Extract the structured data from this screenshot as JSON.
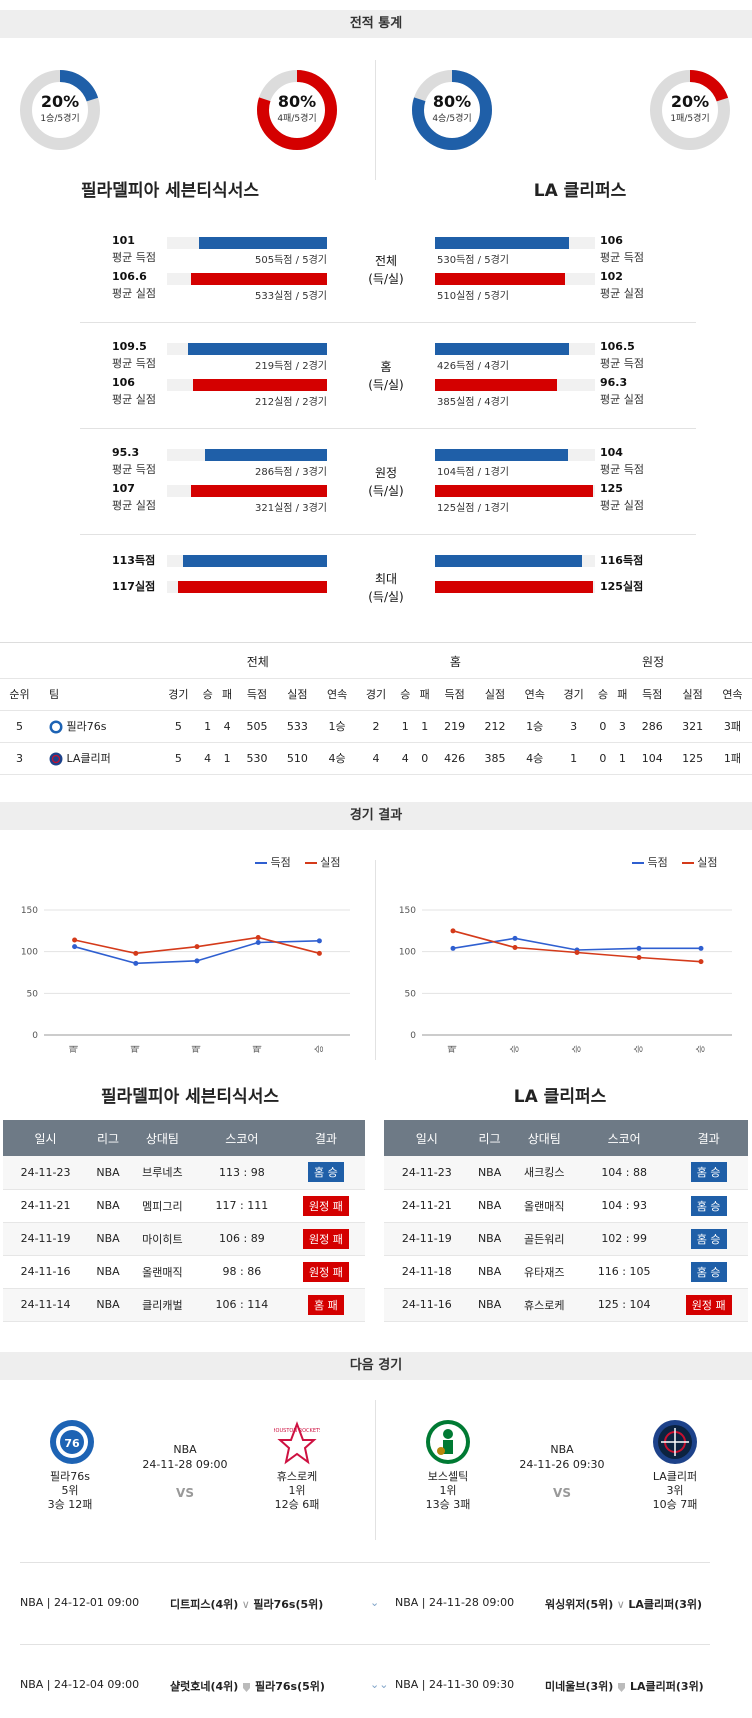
{
  "sections": {
    "stats": "전적 통계",
    "results": "경기 결과",
    "next": "다음 경기"
  },
  "teams": {
    "left": {
      "name": "필라델피아 세븐티식서스",
      "short": "필라76s",
      "rank": "5위",
      "record": "3승 12패"
    },
    "right": {
      "name": "LA 클리퍼스",
      "short": "LA클리퍼",
      "rank": "3위",
      "record": "10승 7패"
    }
  },
  "donuts": [
    {
      "pct": "20%",
      "sub": "1승/5경기",
      "color": "#1f5fa8",
      "fraction": 0.2
    },
    {
      "pct": "80%",
      "sub": "4패/5경기",
      "color": "#d40000",
      "fraction": 0.8
    },
    {
      "pct": "80%",
      "sub": "4승/5경기",
      "color": "#1f5fa8",
      "fraction": 0.8
    },
    {
      "pct": "20%",
      "sub": "1패/5경기",
      "color": "#d40000",
      "fraction": 0.2
    }
  ],
  "stat_groups": [
    {
      "label1": "전체",
      "label2": "(득/실)",
      "left": [
        {
          "num": "101",
          "lbl": "평균 득점",
          "txt": "505득점 / 5경기",
          "frac": 0.8
        },
        {
          "num": "106.6",
          "lbl": "평균 실점",
          "txt": "533실점 / 5경기",
          "frac": 0.85
        }
      ],
      "right": [
        {
          "num": "106",
          "lbl": "평균 득점",
          "txt": "530득점 / 5경기",
          "frac": 0.84
        },
        {
          "num": "102",
          "lbl": "평균 실점",
          "txt": "510실점 / 5경기",
          "frac": 0.81
        }
      ]
    },
    {
      "label1": "홈",
      "label2": "(득/실)",
      "left": [
        {
          "num": "109.5",
          "lbl": "평균 득점",
          "txt": "219득점 / 2경기",
          "frac": 0.87
        },
        {
          "num": "106",
          "lbl": "평균 실점",
          "txt": "212실점 / 2경기",
          "frac": 0.84
        }
      ],
      "right": [
        {
          "num": "106.5",
          "lbl": "평균 득점",
          "txt": "426득점 / 4경기",
          "frac": 0.84
        },
        {
          "num": "96.3",
          "lbl": "평균 실점",
          "txt": "385실점 / 4경기",
          "frac": 0.76
        }
      ]
    },
    {
      "label1": "원정",
      "label2": "(득/실)",
      "left": [
        {
          "num": "95.3",
          "lbl": "평균 득점",
          "txt": "286득점 / 3경기",
          "frac": 0.76
        },
        {
          "num": "107",
          "lbl": "평균 실점",
          "txt": "321실점 / 3경기",
          "frac": 0.85
        }
      ],
      "right": [
        {
          "num": "104",
          "lbl": "평균 득점",
          "txt": "104득점 / 1경기",
          "frac": 0.83
        },
        {
          "num": "125",
          "lbl": "평균 실점",
          "txt": "125실점 / 1경기",
          "frac": 0.99
        }
      ]
    },
    {
      "label1": "최대",
      "label2": "(득/실)",
      "left": [
        {
          "num": "113득점",
          "frac": 0.9
        },
        {
          "num": "117실점",
          "frac": 0.93
        }
      ],
      "right": [
        {
          "num": "116득점",
          "frac": 0.92
        },
        {
          "num": "125실점",
          "frac": 0.99
        }
      ]
    }
  ],
  "standings": {
    "group_headers": [
      "전체",
      "홈",
      "원정"
    ],
    "headers": [
      "순위",
      "팀",
      "경기",
      "승",
      "패",
      "득점",
      "실점",
      "연속",
      "경기",
      "승",
      "패",
      "득점",
      "실점",
      "연속",
      "경기",
      "승",
      "패",
      "득점",
      "실점",
      "연속"
    ],
    "rows": [
      [
        "5",
        "필라76s",
        "5",
        "1",
        "4",
        "505",
        "533",
        "1승",
        "2",
        "1",
        "1",
        "219",
        "212",
        "1승",
        "3",
        "0",
        "3",
        "286",
        "321",
        "3패"
      ],
      [
        "3",
        "LA클리퍼",
        "5",
        "4",
        "1",
        "530",
        "510",
        "4승",
        "4",
        "4",
        "0",
        "426",
        "385",
        "4승",
        "1",
        "0",
        "1",
        "104",
        "125",
        "1패"
      ]
    ]
  },
  "legend": {
    "scored": "득점",
    "conceded": "실점"
  },
  "chart_data": [
    {
      "type": "line",
      "x": [
        "패",
        "패",
        "패",
        "패",
        "승"
      ],
      "ylim": [
        0,
        150
      ],
      "yticks": [
        0,
        50,
        100,
        150
      ],
      "series": [
        {
          "name": "득점",
          "color": "#2f5fd0",
          "values": [
            106,
            86,
            89,
            111,
            113
          ]
        },
        {
          "name": "실점",
          "color": "#d43a1a",
          "values": [
            114,
            98,
            106,
            117,
            98
          ]
        }
      ]
    },
    {
      "type": "line",
      "x": [
        "패",
        "승",
        "승",
        "승",
        "승"
      ],
      "ylim": [
        0,
        150
      ],
      "yticks": [
        0,
        50,
        100,
        150
      ],
      "series": [
        {
          "name": "득점",
          "color": "#2f5fd0",
          "values": [
            104,
            116,
            102,
            104,
            104
          ]
        },
        {
          "name": "실점",
          "color": "#d43a1a",
          "values": [
            125,
            105,
            99,
            93,
            88
          ]
        }
      ]
    }
  ],
  "results_headers": [
    "일시",
    "리그",
    "상대팀",
    "스코어",
    "결과"
  ],
  "results_left": [
    [
      "24-11-23",
      "NBA",
      "브루네츠",
      "113 : 98",
      "홈 승",
      "home"
    ],
    [
      "24-11-21",
      "NBA",
      "멤피그리",
      "117 : 111",
      "원정 패",
      "away"
    ],
    [
      "24-11-19",
      "NBA",
      "마이히트",
      "106 : 89",
      "원정 패",
      "away"
    ],
    [
      "24-11-16",
      "NBA",
      "올랜매직",
      "98 : 86",
      "원정 패",
      "away"
    ],
    [
      "24-11-14",
      "NBA",
      "클리캐벌",
      "106 : 114",
      "홈 패",
      "away"
    ]
  ],
  "results_right": [
    [
      "24-11-23",
      "NBA",
      "새크킹스",
      "104 : 88",
      "홈 승",
      "home"
    ],
    [
      "24-11-21",
      "NBA",
      "올랜매직",
      "104 : 93",
      "홈 승",
      "home"
    ],
    [
      "24-11-19",
      "NBA",
      "골든워리",
      "102 : 99",
      "홈 승",
      "home"
    ],
    [
      "24-11-18",
      "NBA",
      "유타재즈",
      "116 : 105",
      "홈 승",
      "home"
    ],
    [
      "24-11-16",
      "NBA",
      "휴스로케",
      "125 : 104",
      "원정 패",
      "away"
    ]
  ],
  "next_games": [
    {
      "league": "NBA",
      "datetime": "24-11-28 09:00",
      "vs": "VS",
      "home": {
        "name": "필라76s",
        "rank": "5위",
        "record": "3승 12패"
      },
      "away": {
        "name": "휴스로케",
        "rank": "1위",
        "record": "12승 6패"
      }
    },
    {
      "league": "NBA",
      "datetime": "24-11-26 09:30",
      "vs": "VS",
      "home": {
        "name": "보스셀틱",
        "rank": "1위",
        "record": "13승 3패"
      },
      "away": {
        "name": "LA클리퍼",
        "rank": "3위",
        "record": "10승 7패"
      }
    }
  ],
  "schedule": [
    {
      "left": "NBA | 24-12-01 09:00",
      "t1": "디트피스(4위)",
      "t2": "필라76s(5위)",
      "right": "NBA | 24-11-28 09:00",
      "t3": "워싱위저(5위)",
      "t4": "LA클리퍼(3위)"
    },
    {
      "left": "NBA | 24-12-04 09:00",
      "t1": "샬럿호네(4위)",
      "t2": "필라76s(5위)",
      "right": "NBA | 24-11-30 09:30",
      "t3": "미네울브(3위)",
      "t4": "LA클리퍼(3위)"
    }
  ]
}
